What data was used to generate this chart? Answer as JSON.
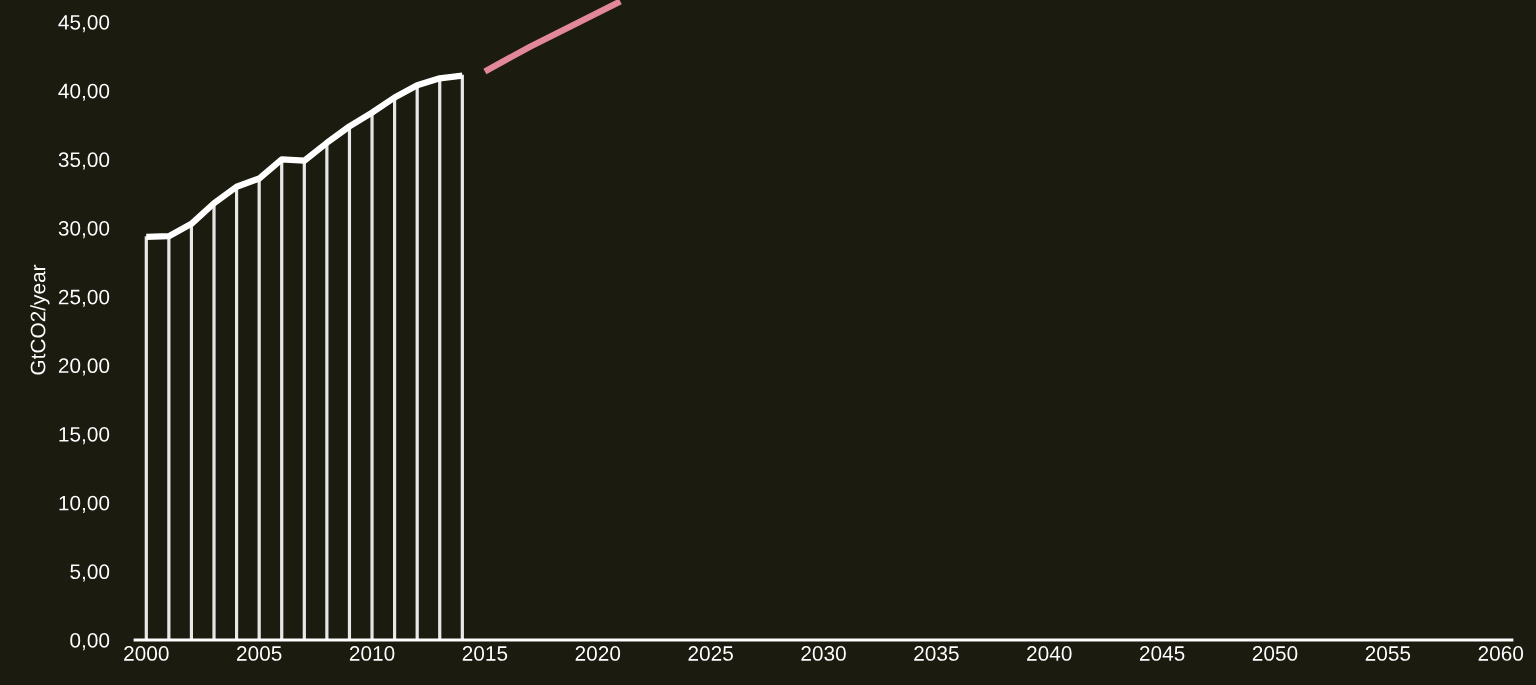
{
  "chart_data": {
    "type": "line",
    "ylabel": "GtCO2/year",
    "series": [
      {
        "type": "bar",
        "color": "#ffffff",
        "x": [
          2000,
          2001,
          2002,
          2003,
          2004,
          2005,
          2006,
          2007,
          2008,
          2009,
          2010,
          2011,
          2012,
          2013,
          2014
        ],
        "values": [
          29.35,
          29.4,
          30.3,
          31.8,
          33.0,
          33.6,
          35.0,
          34.9,
          36.2,
          37.4,
          38.4,
          39.5,
          40.4,
          40.9,
          41.1
        ]
      },
      {
        "color": "#ffffff",
        "x": [
          2000,
          2001,
          2002,
          2003,
          2004,
          2005,
          2006,
          2007,
          2008,
          2009,
          2010,
          2011,
          2012,
          2013,
          2014
        ],
        "values": [
          29.35,
          29.4,
          30.3,
          31.8,
          33.0,
          33.6,
          35.0,
          34.9,
          36.2,
          37.4,
          38.4,
          39.5,
          40.4,
          40.9,
          41.1
        ]
      },
      {
        "color": "#e3879a",
        "x": [
          2015,
          2017,
          2021
        ],
        "values": [
          41.4,
          43.2,
          46.5
        ]
      }
    ],
    "xlim": [
      1999.5,
      2060.5
    ],
    "xticks": [
      2000,
      2005,
      2010,
      2015,
      2020,
      2025,
      2030,
      2035,
      2040,
      2045,
      2050,
      2055,
      2060
    ],
    "ylim": [
      0,
      46.6
    ],
    "yticks": [
      {
        "value": 0,
        "label": "0,00"
      },
      {
        "value": 5,
        "label": "5,00"
      },
      {
        "value": 10,
        "label": "10,00"
      },
      {
        "value": 15,
        "label": "15,00"
      },
      {
        "value": 20,
        "label": "20,00"
      },
      {
        "value": 25,
        "label": "25,00"
      },
      {
        "value": 30,
        "label": "30,00"
      },
      {
        "value": 35,
        "label": "35,00"
      },
      {
        "value": 40,
        "label": "40,00"
      },
      {
        "value": 45,
        "label": "45,00"
      }
    ],
    "grid": false
  }
}
